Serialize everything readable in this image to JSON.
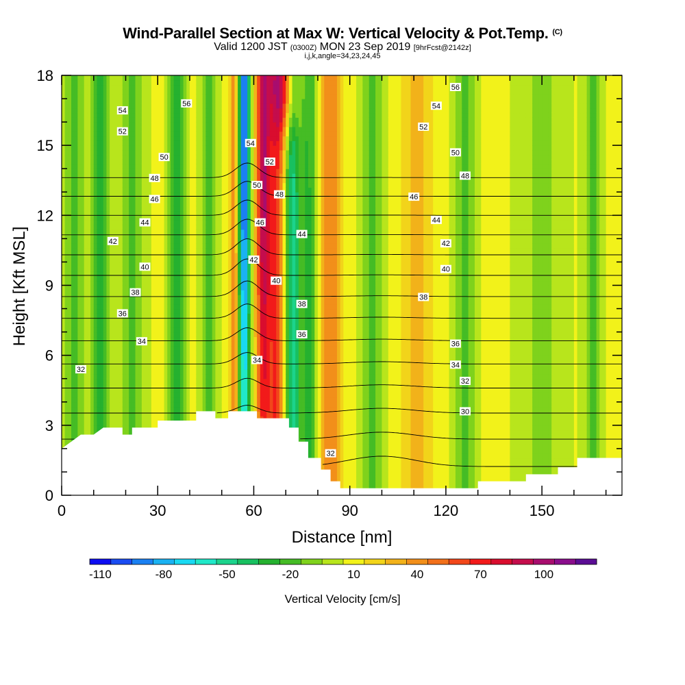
{
  "chart_data": {
    "type": "heatmap",
    "title": "Wind-Parallel Section at Max W: Vertical Velocity & Pot.Temp.",
    "title_mark": "(C)",
    "subtitle_a": "Valid 1200 JST",
    "subtitle_b": "(0300Z)",
    "subtitle_c": "MON 23 Sep 2019",
    "subtitle_d": "[9hrFcst@2142z]",
    "subtitle2": "i,j,k,angle=34,23,24,45",
    "xlabel": "Distance [nm]",
    "ylabel": "Height [Kft MSL]",
    "xlim": [
      0,
      175
    ],
    "ylim": [
      0,
      18
    ],
    "x_ticks": [
      0,
      30,
      60,
      90,
      120,
      150
    ],
    "y_ticks": [
      0,
      3,
      6,
      9,
      12,
      15,
      18
    ],
    "x_tick_labels": [
      "0",
      "30",
      "60",
      "90",
      "120",
      "150"
    ],
    "y_tick_labels": [
      "0",
      "3",
      "6",
      "9",
      "12",
      "15",
      "18"
    ],
    "colorbar": {
      "title": "Vertical Velocity [cm/s]",
      "min": -115,
      "max": 125,
      "step": 10,
      "colors": [
        "#0d0df2",
        "#1a4cf2",
        "#1a80f2",
        "#1ab2f2",
        "#19d9f2",
        "#20e8c8",
        "#1cd38c",
        "#18c060",
        "#25b12f",
        "#45bc25",
        "#7fd21c",
        "#b8e51c",
        "#f2f21a",
        "#f2d41a",
        "#f2b21a",
        "#f28f1a",
        "#f2701a",
        "#f2471a",
        "#f21a1a",
        "#d90d2e",
        "#c40d4c",
        "#a80d6e",
        "#8a0d8c",
        "#5b0d94"
      ],
      "tick_values": [
        -110,
        -80,
        -50,
        -20,
        10,
        40,
        70,
        100
      ],
      "tick_labels": [
        "-110",
        "-80",
        "-50",
        "-20",
        "10",
        "40",
        "70",
        "100"
      ]
    },
    "terrain": [
      [
        0,
        2
      ],
      [
        3,
        2.3
      ],
      [
        6,
        2.6
      ],
      [
        10,
        2.6
      ],
      [
        13,
        2.9
      ],
      [
        19,
        2.9
      ],
      [
        19,
        2.6
      ],
      [
        22,
        2.6
      ],
      [
        22,
        2.9
      ],
      [
        30,
        2.9
      ],
      [
        30,
        3.2
      ],
      [
        42,
        3.2
      ],
      [
        42,
        3.6
      ],
      [
        48,
        3.6
      ],
      [
        48,
        3.3
      ],
      [
        52,
        3.3
      ],
      [
        52,
        3.6
      ],
      [
        61,
        3.6
      ],
      [
        61,
        3.3
      ],
      [
        71,
        3.3
      ],
      [
        71,
        2.9
      ],
      [
        74,
        2.9
      ],
      [
        74,
        2.3
      ],
      [
        77,
        2.3
      ],
      [
        77,
        1.6
      ],
      [
        81,
        1.6
      ],
      [
        81,
        1.1
      ],
      [
        84,
        1.1
      ],
      [
        84,
        0.6
      ],
      [
        87,
        0.6
      ],
      [
        87,
        0.3
      ],
      [
        130,
        0.3
      ],
      [
        130,
        0.6
      ],
      [
        145,
        0.6
      ],
      [
        145,
        0.9
      ],
      [
        155,
        0.9
      ],
      [
        155,
        1.2
      ],
      [
        161,
        1.2
      ],
      [
        161,
        1.6
      ],
      [
        175,
        1.6
      ]
    ],
    "w_bands": [
      {
        "x": 4,
        "w": -25,
        "s": 4
      },
      {
        "x": 12,
        "w": -35,
        "s": 2.5
      },
      {
        "x": 22,
        "w": -25,
        "s": 4
      },
      {
        "x": 36,
        "w": -40,
        "s": 2.5
      },
      {
        "x": 46,
        "w": -25,
        "s": 3
      },
      {
        "x": 54,
        "w": 35,
        "s": 1.5
      },
      {
        "x": 57,
        "w": -105,
        "s": 1.8
      },
      {
        "x": 63,
        "w": 85,
        "s": 2.2
      },
      {
        "x": 67,
        "w": 55,
        "s": 2.5
      },
      {
        "x": 72,
        "w": -55,
        "s": 2.2
      },
      {
        "x": 77,
        "w": -35,
        "s": 3
      },
      {
        "x": 84,
        "w": 35,
        "s": 3.5
      },
      {
        "x": 97,
        "w": -25,
        "s": 3.5
      },
      {
        "x": 111,
        "w": 20,
        "s": 5
      },
      {
        "x": 126,
        "w": -25,
        "s": 3.5
      },
      {
        "x": 150,
        "w": -15,
        "s": 8
      },
      {
        "x": 166,
        "w": -30,
        "s": 2.5
      }
    ],
    "theta_levels": [
      30,
      32,
      34,
      36,
      38,
      40,
      42,
      44,
      46,
      48,
      50,
      52,
      54,
      56
    ],
    "theta_label_positions": [
      {
        "value": 56,
        "x": 39,
        "y": 16.8
      },
      {
        "value": 54,
        "x": 19,
        "y": 16.5
      },
      {
        "value": 52,
        "x": 19,
        "y": 15.6
      },
      {
        "value": 50,
        "x": 32,
        "y": 14.5
      },
      {
        "value": 48,
        "x": 29,
        "y": 13.6
      },
      {
        "value": 46,
        "x": 29,
        "y": 12.7
      },
      {
        "value": 44,
        "x": 26,
        "y": 11.7
      },
      {
        "value": 42,
        "x": 16,
        "y": 10.9
      },
      {
        "value": 40,
        "x": 26,
        "y": 9.8
      },
      {
        "value": 38,
        "x": 23,
        "y": 8.7
      },
      {
        "value": 36,
        "x": 19,
        "y": 7.8
      },
      {
        "value": 34,
        "x": 25,
        "y": 6.6
      },
      {
        "value": 32,
        "x": 6,
        "y": 5.4
      },
      {
        "value": 54,
        "x": 59,
        "y": 15.1
      },
      {
        "value": 52,
        "x": 65,
        "y": 14.3
      },
      {
        "value": 50,
        "x": 61,
        "y": 13.3
      },
      {
        "value": 48,
        "x": 68,
        "y": 12.9
      },
      {
        "value": 46,
        "x": 62,
        "y": 11.7
      },
      {
        "value": 44,
        "x": 75,
        "y": 11.2
      },
      {
        "value": 42,
        "x": 60,
        "y": 10.1
      },
      {
        "value": 40,
        "x": 67,
        "y": 9.2
      },
      {
        "value": 38,
        "x": 75,
        "y": 8.2
      },
      {
        "value": 36,
        "x": 75,
        "y": 6.9
      },
      {
        "value": 34,
        "x": 61,
        "y": 5.8
      },
      {
        "value": 32,
        "x": 84,
        "y": 1.8
      },
      {
        "value": 56,
        "x": 123,
        "y": 17.5
      },
      {
        "value": 54,
        "x": 117,
        "y": 16.7
      },
      {
        "value": 52,
        "x": 113,
        "y": 15.8
      },
      {
        "value": 50,
        "x": 123,
        "y": 14.7
      },
      {
        "value": 48,
        "x": 126,
        "y": 13.7
      },
      {
        "value": 46,
        "x": 110,
        "y": 12.8
      },
      {
        "value": 44,
        "x": 117,
        "y": 11.8
      },
      {
        "value": 42,
        "x": 120,
        "y": 10.8
      },
      {
        "value": 40,
        "x": 120,
        "y": 9.7
      },
      {
        "value": 38,
        "x": 113,
        "y": 8.5
      },
      {
        "value": 36,
        "x": 123,
        "y": 6.5
      },
      {
        "value": 34,
        "x": 123,
        "y": 5.6
      },
      {
        "value": 32,
        "x": 126,
        "y": 4.9
      },
      {
        "value": 30,
        "x": 126,
        "y": 3.6
      }
    ]
  }
}
